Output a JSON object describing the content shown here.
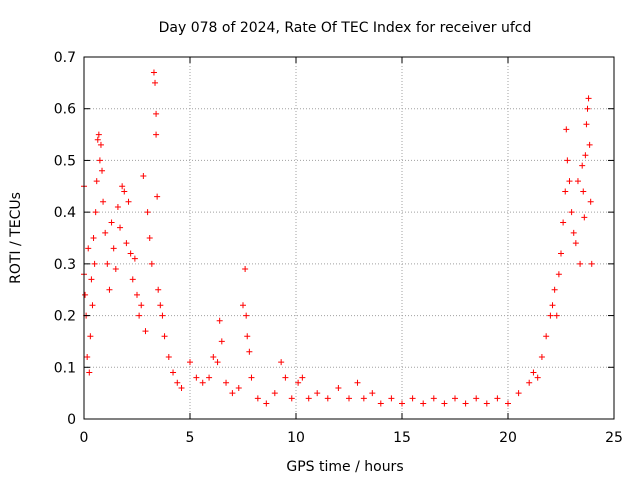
{
  "chart_data": {
    "type": "scatter",
    "title": "Day 078 of 2024, Rate Of TEC Index for receiver ufcd",
    "xlabel": "GPS time / hours",
    "ylabel": "ROTI / TECUs",
    "xlim": [
      0,
      25
    ],
    "ylim": [
      0,
      0.7
    ],
    "xticks": [
      "0",
      "5",
      "10",
      "15",
      "20",
      "25"
    ],
    "yticks": [
      "0",
      "0.1",
      "0.2",
      "0.3",
      "0.4",
      "0.5",
      "0.6",
      "0.7"
    ],
    "grid": true,
    "marker": "+",
    "color": "#ff0000",
    "series": [
      {
        "name": "ROTI",
        "points": [
          [
            0.0,
            0.45
          ],
          [
            0.0,
            0.28
          ],
          [
            0.05,
            0.24
          ],
          [
            0.1,
            0.2
          ],
          [
            0.15,
            0.12
          ],
          [
            0.2,
            0.33
          ],
          [
            0.25,
            0.09
          ],
          [
            0.3,
            0.16
          ],
          [
            0.35,
            0.27
          ],
          [
            0.4,
            0.22
          ],
          [
            0.45,
            0.35
          ],
          [
            0.5,
            0.3
          ],
          [
            0.55,
            0.4
          ],
          [
            0.6,
            0.46
          ],
          [
            0.65,
            0.54
          ],
          [
            0.7,
            0.55
          ],
          [
            0.75,
            0.5
          ],
          [
            0.8,
            0.53
          ],
          [
            0.85,
            0.48
          ],
          [
            0.9,
            0.42
          ],
          [
            1.0,
            0.36
          ],
          [
            1.1,
            0.3
          ],
          [
            1.2,
            0.25
          ],
          [
            1.3,
            0.38
          ],
          [
            1.4,
            0.33
          ],
          [
            1.5,
            0.29
          ],
          [
            1.6,
            0.41
          ],
          [
            1.7,
            0.37
          ],
          [
            1.8,
            0.45
          ],
          [
            1.9,
            0.44
          ],
          [
            2.0,
            0.34
          ],
          [
            2.1,
            0.42
          ],
          [
            2.2,
            0.32
          ],
          [
            2.3,
            0.27
          ],
          [
            2.4,
            0.31
          ],
          [
            2.5,
            0.24
          ],
          [
            2.6,
            0.2
          ],
          [
            2.7,
            0.22
          ],
          [
            2.8,
            0.47
          ],
          [
            2.9,
            0.17
          ],
          [
            3.0,
            0.4
          ],
          [
            3.1,
            0.35
          ],
          [
            3.2,
            0.3
          ],
          [
            3.3,
            0.67
          ],
          [
            3.35,
            0.65
          ],
          [
            3.4,
            0.59
          ],
          [
            3.4,
            0.55
          ],
          [
            3.45,
            0.43
          ],
          [
            3.5,
            0.25
          ],
          [
            3.6,
            0.22
          ],
          [
            3.7,
            0.2
          ],
          [
            3.8,
            0.16
          ],
          [
            4.0,
            0.12
          ],
          [
            4.2,
            0.09
          ],
          [
            4.4,
            0.07
          ],
          [
            4.6,
            0.06
          ],
          [
            5.0,
            0.11
          ],
          [
            5.3,
            0.08
          ],
          [
            5.6,
            0.07
          ],
          [
            5.9,
            0.08
          ],
          [
            6.1,
            0.12
          ],
          [
            6.3,
            0.11
          ],
          [
            6.4,
            0.19
          ],
          [
            6.5,
            0.15
          ],
          [
            6.7,
            0.07
          ],
          [
            7.0,
            0.05
          ],
          [
            7.3,
            0.06
          ],
          [
            7.5,
            0.22
          ],
          [
            7.6,
            0.29
          ],
          [
            7.65,
            0.2
          ],
          [
            7.7,
            0.16
          ],
          [
            7.8,
            0.13
          ],
          [
            7.9,
            0.08
          ],
          [
            8.2,
            0.04
          ],
          [
            8.6,
            0.03
          ],
          [
            9.0,
            0.05
          ],
          [
            9.3,
            0.11
          ],
          [
            9.5,
            0.08
          ],
          [
            9.8,
            0.04
          ],
          [
            10.1,
            0.07
          ],
          [
            10.3,
            0.08
          ],
          [
            10.6,
            0.04
          ],
          [
            11.0,
            0.05
          ],
          [
            11.5,
            0.04
          ],
          [
            12.0,
            0.06
          ],
          [
            12.5,
            0.04
          ],
          [
            12.9,
            0.07
          ],
          [
            13.2,
            0.04
          ],
          [
            13.6,
            0.05
          ],
          [
            14.0,
            0.03
          ],
          [
            14.5,
            0.04
          ],
          [
            15.0,
            0.03
          ],
          [
            15.5,
            0.04
          ],
          [
            16.0,
            0.03
          ],
          [
            16.5,
            0.04
          ],
          [
            17.0,
            0.03
          ],
          [
            17.5,
            0.04
          ],
          [
            18.0,
            0.03
          ],
          [
            18.5,
            0.04
          ],
          [
            19.0,
            0.03
          ],
          [
            19.5,
            0.04
          ],
          [
            20.0,
            0.03
          ],
          [
            20.5,
            0.05
          ],
          [
            21.0,
            0.07
          ],
          [
            21.2,
            0.09
          ],
          [
            21.4,
            0.08
          ],
          [
            21.6,
            0.12
          ],
          [
            21.8,
            0.16
          ],
          [
            22.0,
            0.2
          ],
          [
            22.1,
            0.22
          ],
          [
            22.2,
            0.25
          ],
          [
            22.3,
            0.2
          ],
          [
            22.4,
            0.28
          ],
          [
            22.5,
            0.32
          ],
          [
            22.6,
            0.38
          ],
          [
            22.7,
            0.44
          ],
          [
            22.75,
            0.56
          ],
          [
            22.8,
            0.5
          ],
          [
            22.9,
            0.46
          ],
          [
            23.0,
            0.4
          ],
          [
            23.1,
            0.36
          ],
          [
            23.2,
            0.34
          ],
          [
            23.3,
            0.46
          ],
          [
            23.4,
            0.3
          ],
          [
            23.5,
            0.49
          ],
          [
            23.55,
            0.44
          ],
          [
            23.6,
            0.39
          ],
          [
            23.65,
            0.51
          ],
          [
            23.7,
            0.57
          ],
          [
            23.75,
            0.6
          ],
          [
            23.8,
            0.62
          ],
          [
            23.85,
            0.53
          ],
          [
            23.9,
            0.42
          ],
          [
            23.95,
            0.3
          ]
        ]
      }
    ]
  }
}
